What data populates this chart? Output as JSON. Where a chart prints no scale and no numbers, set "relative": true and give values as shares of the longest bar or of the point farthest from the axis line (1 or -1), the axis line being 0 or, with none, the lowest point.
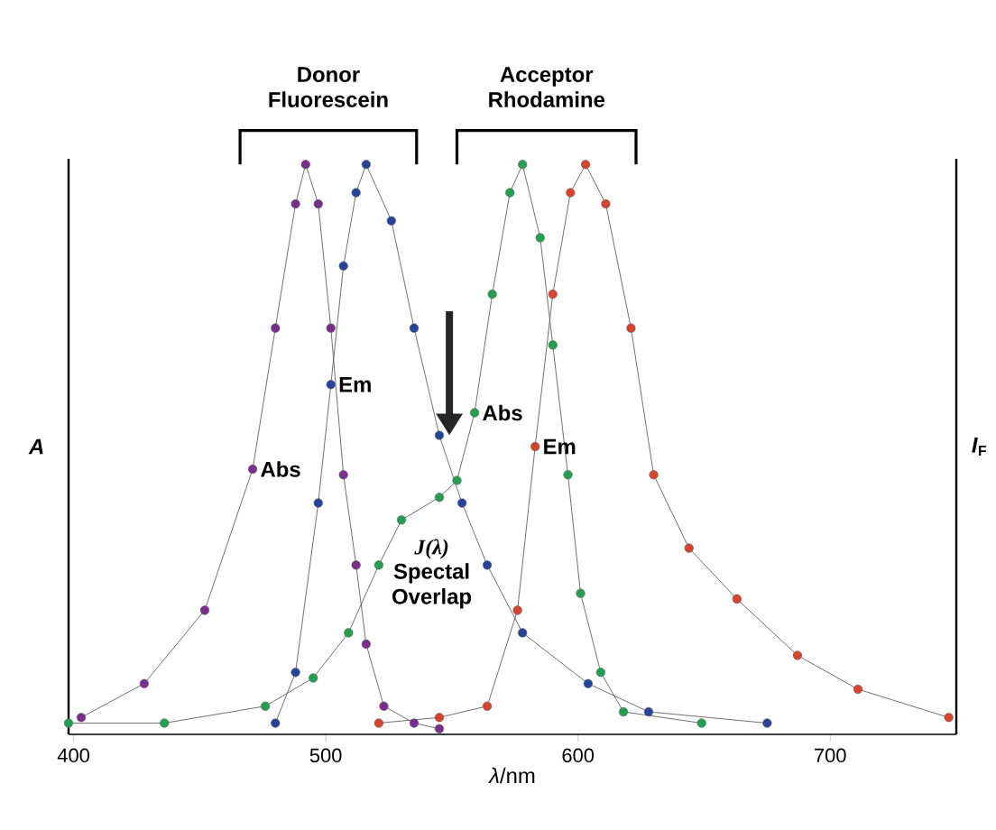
{
  "chart_data": {
    "type": "line",
    "relative": true,
    "marker": "circle",
    "line_style": "solid",
    "xlabel": "*λ*/nm",
    "ylabel": "*A*",
    "y2label": "*I*$_{F}$",
    "xlim": [
      398,
      750
    ],
    "xticks": [
      400,
      500,
      600,
      700
    ],
    "annotations": [
      "Donor Fluorescein",
      "Acceptor Rhodamine",
      {
        "text": "J(λ)",
        "x": 549,
        "y": 0.44
      },
      "Spectal Overlap"
    ],
    "series": [
      {
        "name": "Abs",
        "color": "#7b2d8e",
        "x": [
          403,
          428,
          452,
          471,
          480,
          488,
          492,
          497,
          502,
          507,
          512,
          516,
          523,
          535,
          545
        ],
        "values": [
          0.02,
          0.08,
          0.21,
          0.46,
          0.71,
          0.93,
          1,
          0.93,
          0.71,
          0.45,
          0.29,
          0.15,
          0.04,
          0.01,
          0
        ]
      },
      {
        "name": "Em",
        "color": "#24449a",
        "x": [
          480,
          488,
          497,
          502,
          507,
          512,
          516,
          526,
          535,
          545,
          554,
          564,
          578,
          604,
          628,
          675
        ],
        "values": [
          0.01,
          0.1,
          0.4,
          0.61,
          0.82,
          0.95,
          1,
          0.9,
          0.71,
          0.52,
          0.4,
          0.29,
          0.17,
          0.08,
          0.03,
          0.01
        ]
      },
      {
        "name": "Abs",
        "color": "#22a050",
        "x": [
          398,
          436,
          476,
          495,
          509,
          521,
          530,
          545,
          552,
          559,
          566,
          573,
          578,
          585,
          590,
          596,
          601,
          609,
          618,
          649
        ],
        "values": [
          0.01,
          0.01,
          0.04,
          0.09,
          0.17,
          0.29,
          0.37,
          0.41,
          0.44,
          0.56,
          0.77,
          0.95,
          1,
          0.87,
          0.68,
          0.45,
          0.24,
          0.1,
          0.03,
          0.01
        ]
      },
      {
        "name": "Em",
        "color": "#d8432c",
        "x": [
          521,
          545,
          564,
          576,
          583,
          590,
          597,
          603,
          611,
          621,
          630,
          644,
          663,
          687,
          711,
          747
        ],
        "values": [
          0.01,
          0.02,
          0.04,
          0.21,
          0.5,
          0.77,
          0.95,
          1,
          0.93,
          0.71,
          0.45,
          0.32,
          0.23,
          0.13,
          0.07,
          0.02
        ]
      }
    ]
  }
}
